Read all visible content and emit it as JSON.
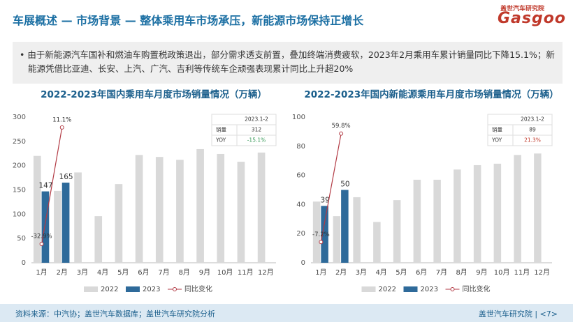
{
  "header": {
    "title": "车展概述 — 市场背景 — 整体乘用车市场承压，新能源市场保持正增长",
    "logo_name": "盖世汽车研究院",
    "logo_brand": "Gasgoo"
  },
  "bullet": "由于新能源汽车国补和燃油车购置税政策退出，部分需求透支前置，叠加终端消费疲软，2023年2月乘用车累计销量同比下降15.1%；新能源凭借比亚迪、长安、上汽、广汽、吉利等传统车企顽强表现累计同比上升超20%",
  "chart_data": [
    {
      "type": "bar",
      "title": "2022-2023年国内乘用车月度市场销量情况（万辆）",
      "categories": [
        "1月",
        "2月",
        "3月",
        "4月",
        "5月",
        "6月",
        "7月",
        "8月",
        "9月",
        "10月",
        "11月",
        "12月"
      ],
      "series": [
        {
          "name": "2022",
          "color": "#d9d9d9",
          "values": [
            220,
            148,
            186,
            96,
            162,
            222,
            218,
            212,
            234,
            224,
            208,
            227
          ]
        },
        {
          "name": "2023",
          "color": "#2e6a9a",
          "values": [
            147,
            165,
            null,
            null,
            null,
            null,
            null,
            null,
            null,
            null,
            null,
            null
          ]
        },
        {
          "name": "同比变化",
          "type": "line",
          "axis": "y2",
          "color": "#b23a44",
          "values": [
            -32.9,
            11.1,
            null,
            null,
            null,
            null,
            null,
            null,
            null,
            null,
            null,
            null
          ],
          "value_labels": [
            "-32.9%",
            "11.1%",
            null,
            null,
            null,
            null,
            null,
            null,
            null,
            null,
            null,
            null
          ]
        }
      ],
      "ylim": [
        0,
        300
      ],
      "yticks": [
        0,
        50,
        100,
        150,
        200,
        250,
        300
      ],
      "y2lim": [
        -40,
        15
      ],
      "inset": {
        "header": "2023.1-2",
        "rows": [
          [
            "销量",
            312
          ],
          [
            "YOY",
            "-15.1%"
          ]
        ],
        "yoy_color": "#3a9a5a"
      }
    },
    {
      "type": "bar",
      "title": "2022-2023年国内新能源乘用车月度市场销量情况（万辆）",
      "categories": [
        "1月",
        "2月",
        "3月",
        "4月",
        "5月",
        "6月",
        "7月",
        "8月",
        "9月",
        "10月",
        "11月",
        "12月"
      ],
      "series": [
        {
          "name": "2022",
          "color": "#d9d9d9",
          "values": [
            42,
            32,
            45,
            28,
            43,
            57,
            57,
            64,
            67,
            68,
            74,
            75
          ]
        },
        {
          "name": "2023",
          "color": "#2e6a9a",
          "values": [
            39,
            50,
            null,
            null,
            null,
            null,
            null,
            null,
            null,
            null,
            null,
            null
          ]
        },
        {
          "name": "同比变化",
          "type": "line",
          "axis": "y2",
          "color": "#b23a44",
          "values": [
            -7.2,
            59.8,
            null,
            null,
            null,
            null,
            null,
            null,
            null,
            null,
            null,
            null
          ],
          "value_labels": [
            "-7.2%",
            "59.8%",
            null,
            null,
            null,
            null,
            null,
            null,
            null,
            null,
            null,
            null
          ]
        }
      ],
      "ylim": [
        0,
        100
      ],
      "yticks": [
        0,
        20,
        40,
        60,
        80,
        100
      ],
      "y2lim": [
        -20,
        70
      ],
      "inset": {
        "header": "2023.1-2",
        "rows": [
          [
            "销量",
            89
          ],
          [
            "YOY",
            "21.3%"
          ]
        ],
        "yoy_color": "#c0392b"
      }
    }
  ],
  "footer": {
    "source": "资料来源：中汽协；盖世汽车数据库；盖世汽车研究院分析",
    "page": "盖世汽车研究院 | <7>"
  }
}
